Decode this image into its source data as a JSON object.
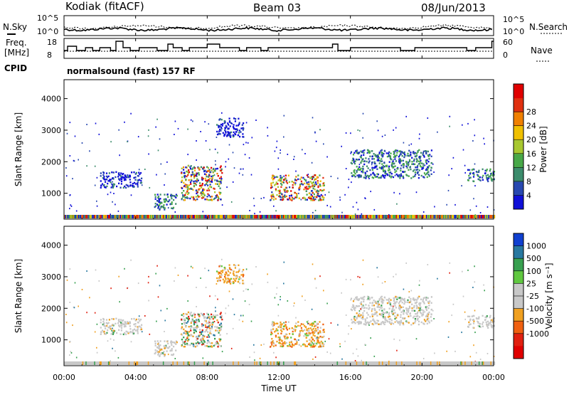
{
  "header": {
    "radar": "Kodiak (fitACF)",
    "beam": "Beam 03",
    "date": "08/Jun/2013"
  },
  "noise_panel": {
    "left_label": "N.Sky",
    "right_label": "N.Search",
    "left_ticks": [
      "10^5",
      "10^0"
    ],
    "right_ticks": [
      "10^5",
      "10^0"
    ]
  },
  "freq_panel": {
    "left_label_1": "Freq.",
    "left_label_2": "[MHz]",
    "left_ticks": [
      "18",
      "8"
    ],
    "right_label": "Nave",
    "right_ticks": [
      "60",
      "0"
    ]
  },
  "cpid": {
    "label": "CPID",
    "value": "normalsound (fast) 157 RF"
  },
  "chart_data": [
    {
      "type": "heatmap",
      "panel": "power",
      "ylabel": "Slant Range [km]",
      "ylim": [
        180,
        4600
      ],
      "yticks": [
        "1000",
        "2000",
        "3000",
        "4000"
      ],
      "xlim": [
        "00:00",
        "24:00"
      ],
      "colorbar": {
        "label": "Power [dB]",
        "ticks": [
          "4",
          "8",
          "12",
          "16",
          "20",
          "24",
          "28"
        ],
        "colors": [
          "#1010d8",
          "#2848b0",
          "#3c8c6c",
          "#48a848",
          "#a8c830",
          "#f0c000",
          "#f08000",
          "#e03010",
          "#e00000"
        ]
      },
      "echo_regions": [
        {
          "t_start": 2.0,
          "t_end": 4.3,
          "r_min": 1200,
          "r_max": 1700,
          "level": "weak"
        },
        {
          "t_start": 5.0,
          "t_end": 6.3,
          "r_min": 500,
          "r_max": 1000,
          "level": "medium"
        },
        {
          "t_start": 6.5,
          "t_end": 8.8,
          "r_min": 800,
          "r_max": 1900,
          "level": "strong"
        },
        {
          "t_start": 8.5,
          "t_end": 10.0,
          "r_min": 2800,
          "r_max": 3400,
          "level": "weak"
        },
        {
          "t_start": 11.5,
          "t_end": 14.5,
          "r_min": 800,
          "r_max": 1600,
          "level": "strong"
        },
        {
          "t_start": 16.0,
          "t_end": 20.5,
          "r_min": 1500,
          "r_max": 2400,
          "level": "medium"
        },
        {
          "t_start": 22.5,
          "t_end": 24.0,
          "r_min": 1400,
          "r_max": 1800,
          "level": "medium"
        }
      ]
    },
    {
      "type": "heatmap",
      "panel": "velocity",
      "ylabel": "Slant Range [km]",
      "ylim": [
        180,
        4600
      ],
      "yticks": [
        "1000",
        "2000",
        "3000",
        "4000"
      ],
      "xlabel": "Time UT",
      "xticks": [
        "00:00",
        "04:00",
        "08:00",
        "12:00",
        "16:00",
        "20:00",
        "00:00"
      ],
      "colorbar": {
        "label": "Velocity [m s⁻¹]",
        "ticks": [
          "1000",
          "500",
          "100",
          "25",
          "-25",
          "-100",
          "-500",
          "-1000"
        ],
        "colors": [
          "#1040d0",
          "#2878a0",
          "#38a050",
          "#60c840",
          "#c8c8c8",
          "#c8c8c8",
          "#f0a020",
          "#f06010",
          "#e02010",
          "#e00000"
        ]
      },
      "echo_regions": [
        {
          "t_start": 2.0,
          "t_end": 4.3,
          "r_min": 1200,
          "r_max": 1700,
          "level": "ground"
        },
        {
          "t_start": 5.0,
          "t_end": 6.3,
          "r_min": 500,
          "r_max": 1000,
          "level": "ground"
        },
        {
          "t_start": 6.5,
          "t_end": 8.8,
          "r_min": 800,
          "r_max": 1900,
          "level": "mixed"
        },
        {
          "t_start": 8.5,
          "t_end": 10.0,
          "r_min": 2800,
          "r_max": 3400,
          "level": "away"
        },
        {
          "t_start": 11.5,
          "t_end": 14.5,
          "r_min": 800,
          "r_max": 1600,
          "level": "away"
        },
        {
          "t_start": 16.0,
          "t_end": 20.5,
          "r_min": 1500,
          "r_max": 2400,
          "level": "ground"
        },
        {
          "t_start": 22.5,
          "t_end": 24.0,
          "r_min": 1400,
          "r_max": 1800,
          "level": "ground"
        }
      ]
    }
  ]
}
